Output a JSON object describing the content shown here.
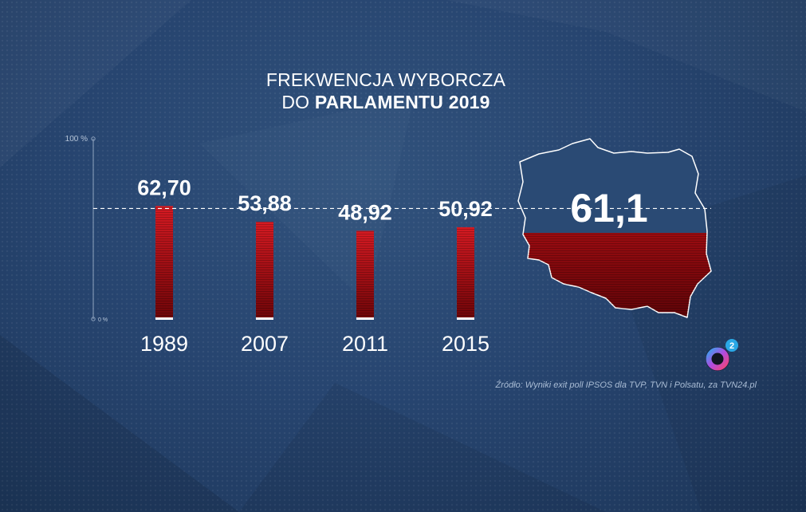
{
  "title": {
    "line1": "FREKWENCJA WYBORCZA",
    "line2_light": "DO ",
    "line2_bold": "PARLAMENTU 2019"
  },
  "axis": {
    "top_label": "100 %",
    "bottom_label": "0 %"
  },
  "chart_data": {
    "type": "bar",
    "title": "FREKWENCJA WYBORCZA DO PARLAMENTU 2019",
    "categories": [
      "1989",
      "2007",
      "2011",
      "2015"
    ],
    "values": [
      62.7,
      53.88,
      48.92,
      50.92
    ],
    "value_labels": [
      "62,70",
      "53,88",
      "48,92",
      "50,92"
    ],
    "ylim": [
      0,
      100
    ],
    "highlight": {
      "value": 61.1,
      "label": "61,1"
    },
    "colors": {
      "bar_top": "#d61a22",
      "bar_bottom": "#6e0508",
      "map_top": "#27456c",
      "map_bottom": "#c8141c"
    }
  },
  "source": "Źródło: Wyniki exit poll IPSOS dla TVP, TVN i Polsatu, za TVN24.pl",
  "logo": {
    "icon": "tvn24-o2-logo",
    "badge_text": "2",
    "color_ring": "#b14be0",
    "color_badge": "#2aa8e6"
  }
}
